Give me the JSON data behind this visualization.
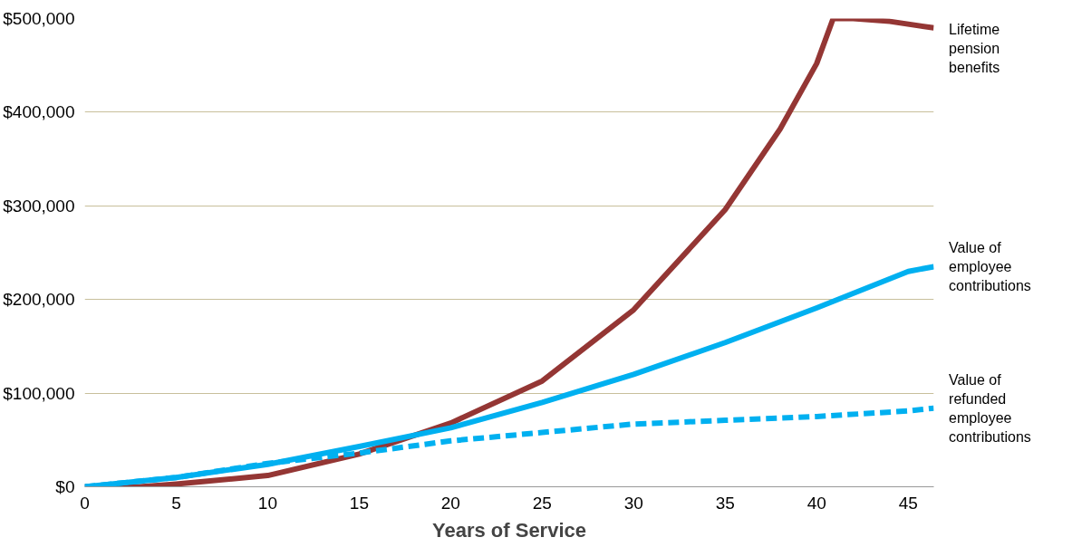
{
  "chart_data": {
    "type": "line",
    "xlabel": "Years of Service",
    "xlim": [
      0,
      46.4
    ],
    "xticks": [
      0,
      5,
      10,
      15,
      20,
      25,
      30,
      35,
      40,
      45
    ],
    "ylim": [
      0,
      500000
    ],
    "yticks": [
      {
        "value": 0,
        "label": "$0"
      },
      {
        "value": 100000,
        "label": "$100,000"
      },
      {
        "value": 200000,
        "label": "$200,000"
      },
      {
        "value": 300000,
        "label": "$300,000"
      },
      {
        "value": 400000,
        "label": "$400,000"
      },
      {
        "value": 500000,
        "label": "$500,000"
      }
    ],
    "grid": "y",
    "series": [
      {
        "name": "Lifetime pension benefits",
        "color": "#943634",
        "line_style": "solid",
        "x": [
          0,
          3,
          5,
          10,
          15,
          20,
          25,
          30,
          35,
          38,
          40,
          40.9,
          42,
          44,
          46.4
        ],
        "values": [
          0,
          0,
          3000,
          12000,
          35000,
          68000,
          113000,
          189000,
          296000,
          382000,
          452000,
          500000,
          500000,
          497000,
          490000
        ]
      },
      {
        "name": "Value of employee contributions",
        "color": "#00b0f0",
        "line_style": "solid",
        "x": [
          0,
          5,
          10,
          15,
          20,
          25,
          30,
          35,
          40,
          45,
          46.4
        ],
        "values": [
          0,
          10000,
          24000,
          43000,
          63000,
          90000,
          120000,
          154000,
          191000,
          230000,
          235000
        ]
      },
      {
        "name": "Value of refunded employee contributions",
        "color": "#00b0f0",
        "line_style": "dashed",
        "x": [
          0,
          5,
          10,
          15,
          20,
          25,
          30,
          35,
          40,
          45,
          46.4
        ],
        "values": [
          0,
          10000,
          25000,
          36000,
          49000,
          58000,
          67000,
          71000,
          75000,
          81000,
          84000
        ]
      }
    ]
  }
}
